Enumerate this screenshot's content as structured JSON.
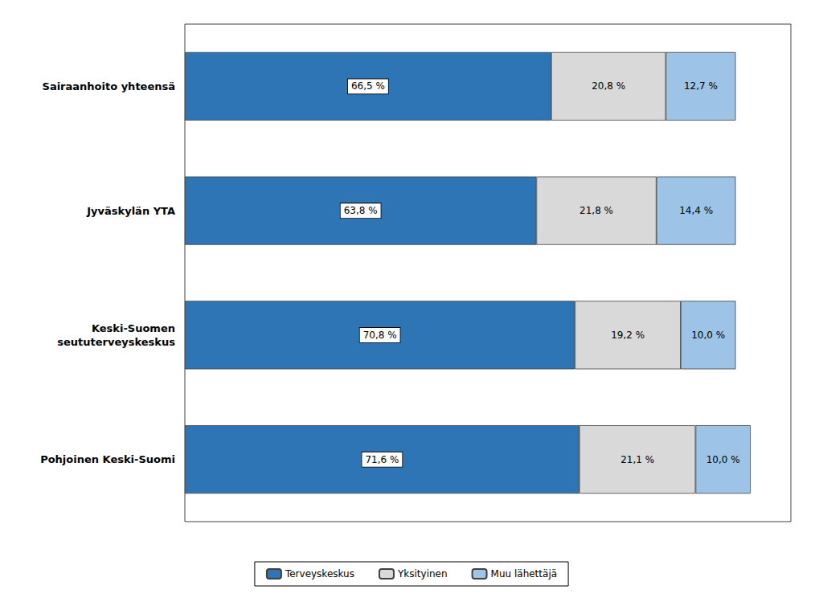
{
  "chart_data": {
    "type": "bar",
    "orientation": "horizontal",
    "stacked": true,
    "categories": [
      "Pohjoinen Keski-Suomi",
      "Keski-Suomen\nseututerveyskeskus",
      "Jyväskylän YTA",
      "Sairaanhoito yhteensä"
    ],
    "series": [
      {
        "name": "Terveyskeskus",
        "color": "#2E75B6",
        "values": [
          71.6,
          70.8,
          63.8,
          66.5
        ],
        "value_labels": [
          "71,6 %",
          "70,8 %",
          "63,8 %",
          "66,5 %"
        ]
      },
      {
        "name": "Yksityinen",
        "color": "#D9D9D9",
        "values": [
          21.1,
          19.2,
          21.8,
          20.8
        ],
        "value_labels": [
          "21,1 %",
          "19,2 %",
          "21,8 %",
          "20,8 %"
        ]
      },
      {
        "name": "Muu lähettäjä",
        "color": "#9DC3E6",
        "values": [
          10.0,
          10.0,
          14.4,
          12.7
        ],
        "value_labels": [
          "10,0 %",
          "10,0 %",
          "14,4 %",
          "12,7 %"
        ]
      }
    ],
    "xlim": [
      0,
      110
    ],
    "data_labels": true,
    "tick_labels": "y",
    "grid": false,
    "legend": "bottom"
  }
}
